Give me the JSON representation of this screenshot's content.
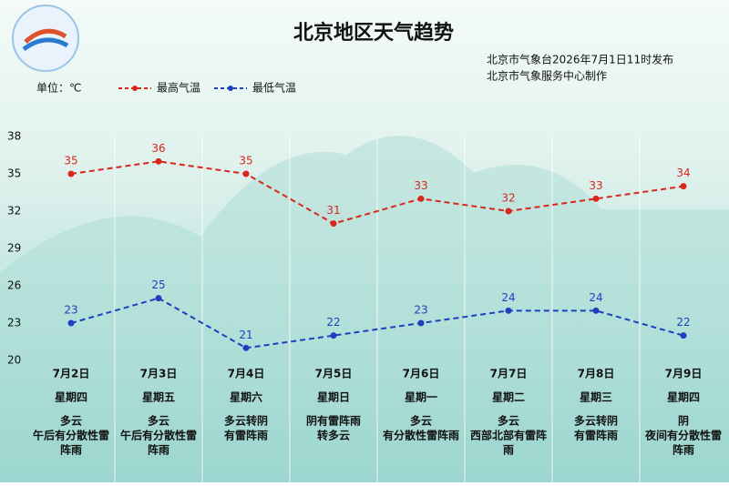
{
  "chart_data": {
    "type": "line",
    "title": "北京地区天气趋势",
    "subtitle": [
      "北京市气象台2026年7月1日11时发布",
      "北京市气象服务中心制作"
    ],
    "unit": "单位：℃",
    "categories": [
      "7月2日",
      "7月3日",
      "7月4日",
      "7月5日",
      "7月6日",
      "7月7日",
      "7月8日",
      "7月9日"
    ],
    "weekdays": [
      "星期四",
      "星期五",
      "星期六",
      "星期日",
      "星期一",
      "星期二",
      "星期三",
      "星期四"
    ],
    "weather": [
      [
        "多云",
        "午后有分散性雷",
        "阵雨"
      ],
      [
        "多云",
        "午后有分散性雷",
        "阵雨"
      ],
      [
        "多云转阴",
        "有雷阵雨"
      ],
      [
        "阴有雷阵雨",
        "转多云"
      ],
      [
        "多云",
        "有分散性雷阵雨"
      ],
      [
        "多云",
        "西部北部有雷阵",
        "雨"
      ],
      [
        "多云转阴",
        "有雷阵雨"
      ],
      [
        "阴",
        "夜间有分散性雷",
        "阵雨"
      ]
    ],
    "series": [
      {
        "name": "最高气温",
        "color": "#d9261c",
        "values": [
          35,
          36,
          35,
          31,
          33,
          32,
          33,
          34
        ]
      },
      {
        "name": "最低气温",
        "color": "#1f3fbf",
        "values": [
          23,
          25,
          21,
          22,
          23,
          24,
          24,
          22
        ]
      }
    ],
    "ylim": [
      20,
      38
    ],
    "yticks": [
      20,
      23,
      26,
      29,
      32,
      35,
      38
    ]
  }
}
